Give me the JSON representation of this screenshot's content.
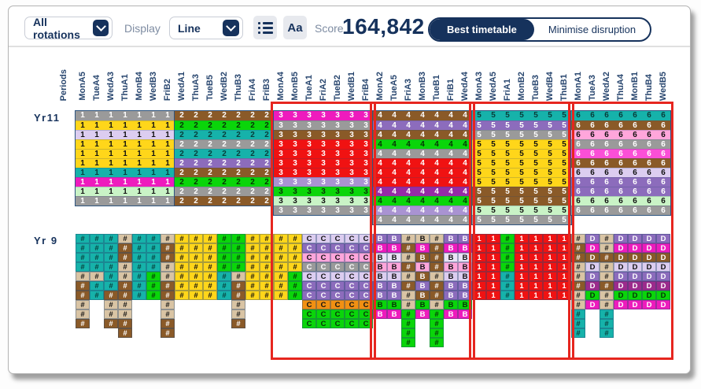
{
  "toolbar": {
    "rotation_value": "All rotations",
    "display_label": "Display",
    "display_value": "Line",
    "text_size_label": "Aa",
    "score_label": "Score",
    "score_value": "164,842",
    "toggle_active": "Best timetable",
    "toggle_inactive": "Minimise disruption"
  },
  "headers": {
    "periods_label": "Periods",
    "columns": [
      "MonA5",
      "TueA4",
      "WedA3",
      "ThuA1",
      "MonB4",
      "WedB3",
      "FriB2",
      "WedA1",
      "ThuA3",
      "TueB5",
      "WedB2",
      "ThuB3",
      "FriA4",
      "FriB3",
      "MonA4",
      "MonB5",
      "TueA1",
      "FriA2",
      "TueB2",
      "WedB1",
      "FriB4",
      "MonA2",
      "TueA5",
      "FriA3",
      "MonB3",
      "TueB1",
      "FriB1",
      "WedA4",
      "MonA3",
      "WedA5",
      "FriA1",
      "MonB2",
      "TueB3",
      "WedB4",
      "ThuB1",
      "MonA1",
      "TueA3",
      "WedA2",
      "ThuA4",
      "MonB1",
      "ThuB4",
      "WedB5"
    ]
  },
  "palette": {
    "gray": {
      "bg": "#9a9a9a",
      "fg": "#ffffff"
    },
    "yellow": {
      "bg": "#ffd61a",
      "fg": "#111111"
    },
    "lavender": {
      "bg": "#dccdf0",
      "fg": "#111111"
    },
    "teal": {
      "bg": "#16b2aa",
      "fg": "#083d3a"
    },
    "magenta": {
      "bg": "#ee1bbd",
      "fg": "#ffffff"
    },
    "mint": {
      "bg": "#c9f3c6",
      "fg": "#111111"
    },
    "brown": {
      "bg": "#8a5a28",
      "fg": "#ffffff"
    },
    "green": {
      "bg": "#0ad50a",
      "fg": "#063306"
    },
    "purple": {
      "bg": "#8c6cbc",
      "fg": "#ffffff"
    },
    "lilac": {
      "bg": "#a993d2",
      "fg": "#ffffff"
    },
    "red": {
      "bg": "#f01212",
      "fg": "#ffffff"
    },
    "violet": {
      "bg": "#952ba6",
      "fg": "#ffffff"
    },
    "pink": {
      "bg": "#ffa6db",
      "fg": "#111111"
    },
    "hotpink": {
      "bg": "#fb4fd7",
      "fg": "#ffffff"
    },
    "tan": {
      "bg": "#d9c4a4",
      "fg": "#111111"
    },
    "orange": {
      "bg": "#f19012",
      "fg": "#111111"
    },
    "plum": {
      "bg": "#9c2b8c",
      "fg": "#ffffff"
    },
    "palelav": {
      "bg": "#eae3f6",
      "fg": "#111111"
    }
  },
  "yr11": {
    "label": "Yr11",
    "groups": [
      {
        "digit": "1",
        "rows": [
          "gray",
          "yellow",
          "lavender",
          "yellow",
          "yellow",
          "yellow",
          "teal",
          "magenta",
          "mint",
          "gray"
        ]
      },
      {
        "digit": "2",
        "rows": [
          "brown",
          "green",
          "teal",
          "gray",
          "teal",
          "purple",
          "brown",
          "green",
          "gray",
          "brown"
        ]
      },
      {
        "digit": "3",
        "rows": [
          "magenta",
          "gray",
          "brown",
          "red",
          "red",
          "red",
          "red",
          "lilac",
          "green",
          "mint",
          "gray"
        ]
      },
      {
        "digit": "4",
        "rows": [
          "brown",
          "purple",
          "brown",
          "green",
          "gray",
          "red",
          "red",
          "red",
          "violet",
          "green",
          "lilac",
          "gray"
        ]
      },
      {
        "digit": "5",
        "rows": [
          "teal",
          "purple",
          "gray",
          "yellow",
          "yellow",
          "yellow",
          "yellow",
          "yellow",
          "brown",
          "brown",
          "mint",
          "gray"
        ]
      },
      {
        "digit": "6",
        "rows": [
          "teal",
          "brown",
          "pink",
          "gray",
          "hotpink",
          "brown",
          "lavender",
          "purple",
          "purple",
          "mint",
          "gray"
        ]
      }
    ]
  },
  "yr9": {
    "label": "Yr 9",
    "columns": [
      {
        "char": "#",
        "cells": [
          "teal",
          "teal",
          "teal",
          "teal",
          "tan",
          "brown",
          "brown",
          "tan",
          "tan",
          "brown"
        ]
      },
      {
        "char": "#",
        "cells": [
          "teal",
          "teal",
          "teal",
          "teal",
          "tan",
          "teal",
          "teal"
        ]
      },
      {
        "char": "#",
        "cells": [
          "teal",
          "teal",
          "teal",
          "teal",
          "teal",
          "teal",
          "brown",
          "tan",
          "tan",
          "brown"
        ]
      },
      {
        "char": "#",
        "cells": [
          "tan",
          "brown",
          "brown",
          "tan",
          "tan",
          "brown",
          "brown",
          "tan",
          "tan",
          "brown",
          "brown"
        ]
      },
      {
        "char": "#",
        "cells": [
          "teal",
          "teal",
          "teal",
          "teal",
          "teal",
          "teal",
          "teal"
        ]
      },
      {
        "char": "#",
        "cells": [
          "teal",
          "teal",
          "teal",
          "teal",
          "green",
          "green",
          "green"
        ]
      },
      {
        "char": "#",
        "cells": [
          "tan",
          "brown",
          "brown",
          "tan",
          "tan",
          "brown",
          "brown",
          "tan",
          "tan",
          "brown",
          "brown"
        ]
      },
      {
        "char": "#",
        "cells": [
          "yellow",
          "yellow",
          "yellow",
          "yellow",
          "yellow",
          "yellow",
          "yellow"
        ]
      },
      {
        "char": "#",
        "cells": [
          "yellow",
          "yellow",
          "yellow",
          "yellow",
          "yellow",
          "yellow",
          "yellow"
        ]
      },
      {
        "char": "#",
        "cells": [
          "yellow",
          "yellow",
          "yellow",
          "yellow",
          "yellow",
          "yellow",
          "yellow"
        ]
      },
      {
        "char": "#",
        "cells": [
          "green",
          "green",
          "green",
          "green",
          "teal",
          "teal",
          "teal"
        ]
      },
      {
        "char": "#",
        "cells": [
          "green",
          "green",
          "green",
          "green",
          "tan",
          "brown",
          "brown",
          "tan",
          "tan",
          "brown"
        ]
      },
      {
        "char": "#",
        "cells": [
          "yellow",
          "yellow",
          "yellow",
          "yellow",
          "yellow",
          "yellow",
          "yellow"
        ]
      },
      {
        "char": "#",
        "cells": [
          "yellow",
          "yellow",
          "yellow",
          "yellow",
          "yellow",
          "yellow",
          "yellow"
        ]
      },
      {
        "char": "#",
        "cells": [
          "yellow",
          "yellow",
          "yellow",
          "yellow",
          "yellow",
          "yellow",
          "yellow"
        ]
      },
      {
        "char": "#",
        "cells": [
          "yellow",
          "yellow",
          "yellow",
          "yellow",
          "green",
          "green",
          "green"
        ]
      },
      {
        "char": "C",
        "cells": [
          "lavender",
          "purple",
          "pink",
          "gray",
          "lavender",
          "purple",
          "purple",
          "orange",
          "green",
          "green"
        ]
      },
      {
        "char": "C",
        "cells": [
          "lavender",
          "purple",
          "pink",
          "gray",
          "lavender",
          "purple",
          "purple",
          "orange",
          "green",
          "green"
        ]
      },
      {
        "char": "C",
        "cells": [
          "lavender",
          "purple",
          "pink",
          "gray",
          "lavender",
          "purple",
          "purple",
          "orange",
          "green",
          "green"
        ]
      },
      {
        "char": "C",
        "cells": [
          "lavender",
          "purple",
          "pink",
          "gray",
          "lavender",
          "purple",
          "purple",
          "orange",
          "green",
          "green"
        ]
      },
      {
        "char": "C",
        "cells": [
          "lavender",
          "purple",
          "pink",
          "gray",
          "lavender",
          "purple",
          "purple",
          "orange",
          "green",
          "green"
        ]
      },
      {
        "char": "B",
        "cells": [
          "purple",
          "magenta",
          "palelav",
          "pink",
          "lavender",
          "purple",
          "purple",
          "green",
          "magenta"
        ]
      },
      {
        "char": "B",
        "cells": [
          "purple",
          "magenta",
          "palelav",
          "pink",
          "lavender",
          "purple",
          "purple",
          "green",
          "magenta"
        ]
      },
      {
        "char": "#",
        "cells": [
          "tan",
          "brown",
          "tan",
          "brown",
          "tan",
          "brown",
          "tan",
          "tan",
          "green",
          "green",
          "green",
          "green"
        ]
      },
      {
        "char": "B",
        "cells": [
          "tan",
          "magenta",
          "brown",
          "pink",
          "brown",
          "purple",
          "brown",
          "green",
          "magenta"
        ]
      },
      {
        "char": "#",
        "cells": [
          "tan",
          "brown",
          "brown",
          "brown",
          "tan",
          "brown",
          "brown",
          "tan",
          "green",
          "green",
          "green",
          "green"
        ]
      },
      {
        "char": "B",
        "cells": [
          "purple",
          "magenta",
          "palelav",
          "pink",
          "lavender",
          "purple",
          "purple",
          "green",
          "magenta"
        ]
      },
      {
        "char": "B",
        "cells": [
          "purple",
          "magenta",
          "palelav",
          "pink",
          "lavender",
          "purple",
          "purple",
          "green",
          "magenta"
        ]
      },
      {
        "char": "1",
        "cells": [
          "red",
          "red",
          "red",
          "red",
          "red",
          "red",
          "red"
        ]
      },
      {
        "char": "1",
        "cells": [
          "red",
          "red",
          "red",
          "red",
          "red",
          "red",
          "red"
        ]
      },
      {
        "char": "#",
        "cells": [
          "green",
          "green",
          "green",
          "green",
          "teal",
          "teal",
          "teal"
        ]
      },
      {
        "char": "1",
        "cells": [
          "red",
          "red",
          "red",
          "red",
          "red",
          "red",
          "red"
        ]
      },
      {
        "char": "1",
        "cells": [
          "red",
          "red",
          "red",
          "red",
          "red",
          "red",
          "red"
        ]
      },
      {
        "char": "1",
        "cells": [
          "red",
          "red",
          "red",
          "red",
          "red",
          "red",
          "red"
        ]
      },
      {
        "char": "1",
        "cells": [
          "red",
          "red",
          "red",
          "red",
          "red",
          "red",
          "red"
        ]
      },
      {
        "char": "#",
        "cells": [
          "tan",
          "brown",
          "brown",
          "tan",
          "tan",
          "brown",
          "tan",
          "tan",
          "teal",
          "teal",
          "teal"
        ]
      },
      {
        "char": "D",
        "cells": [
          "purple",
          "magenta",
          "brown",
          "lavender",
          "purple",
          "plum",
          "green",
          "magenta"
        ]
      },
      {
        "char": "#",
        "cells": [
          "tan",
          "tan",
          "brown",
          "tan",
          "tan",
          "brown",
          "tan",
          "tan",
          "teal",
          "teal",
          "teal"
        ]
      },
      {
        "char": "D",
        "cells": [
          "purple",
          "magenta",
          "brown",
          "lavender",
          "purple",
          "plum",
          "green",
          "magenta"
        ]
      },
      {
        "char": "D",
        "cells": [
          "purple",
          "magenta",
          "brown",
          "lavender",
          "purple",
          "plum",
          "green",
          "magenta"
        ]
      },
      {
        "char": "D",
        "cells": [
          "purple",
          "magenta",
          "brown",
          "lavender",
          "purple",
          "plum",
          "green",
          "magenta"
        ]
      },
      {
        "char": "D",
        "cells": [
          "purple",
          "magenta",
          "brown",
          "lavender",
          "purple",
          "plum",
          "green",
          "magenta"
        ]
      }
    ]
  },
  "highlights": {
    "color": "#e6261f",
    "groups": [
      3,
      4,
      5,
      6
    ]
  }
}
